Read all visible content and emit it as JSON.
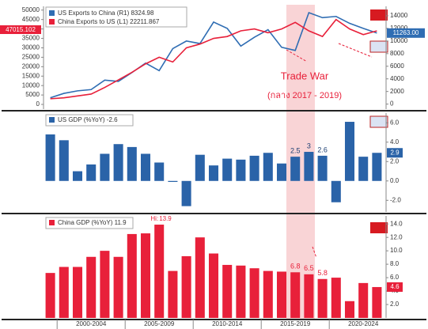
{
  "chart_data": [
    {
      "type": "line",
      "series": [
        {
          "name": "US Exports to China (R1) 8324.98",
          "color": "#2f6db3",
          "axis": "y2",
          "values": [
            1000,
            1700,
            2100,
            2300,
            3800,
            3600,
            5000,
            6500,
            5300,
            8800,
            10000,
            9600,
            13000,
            12000,
            9200,
            10600,
            11800,
            9000,
            8500,
            14500,
            13700,
            13900,
            12800,
            12000,
            11263
          ]
        },
        {
          "name": "China Exports to US (L1) 22211.867",
          "color": "#e8203a",
          "values": [
            3000,
            3500,
            4500,
            5500,
            9000,
            13000,
            17000,
            21500,
            25000,
            22500,
            30000,
            32000,
            35000,
            36000,
            39000,
            40000,
            38000,
            40000,
            43500,
            39000,
            36000,
            45000,
            40000,
            37000,
            39000
          ]
        }
      ],
      "ylim": [
        -2500,
        52000
      ],
      "yticks": [
        0,
        5000,
        10000,
        15000,
        20000,
        25000,
        30000,
        35000,
        40000,
        45000,
        50000
      ],
      "y2lim": [
        -800,
        15500
      ],
      "y2ticks": [
        0,
        2000,
        4000,
        6000,
        8000,
        10000,
        12000,
        14000
      ],
      "left_tag": "47015.102",
      "right_tag": "11263.00",
      "annotation": "Trade War",
      "annotation_sub": "(กลาง 2017 - 2019)"
    },
    {
      "type": "bar",
      "name": "US GDP (%YoY) -2.6",
      "color": "#2a63a8",
      "values": [
        4.8,
        4.2,
        1.0,
        1.7,
        2.8,
        3.8,
        3.5,
        2.8,
        1.9,
        -0.1,
        -2.6,
        2.7,
        1.6,
        2.3,
        2.2,
        2.6,
        2.9,
        1.8,
        2.5,
        3.0,
        2.6,
        -2.2,
        6.1,
        2.5,
        2.9
      ],
      "labeled_bars": [
        18,
        19,
        20
      ],
      "ylim": [
        -3.2,
        7.0
      ],
      "yticks": [
        {
          "value": -2,
          "label": "-2.0"
        },
        {
          "value": 0,
          "label": "0.0"
        },
        {
          "value": 2,
          "label": "2.0"
        },
        {
          "value": 4,
          "label": "4.0"
        },
        {
          "value": 6,
          "label": "6.0"
        }
      ],
      "right_tag": "2.9"
    },
    {
      "type": "bar",
      "name": "China GDP (%YoY) 11.9",
      "color": "#e8203a",
      "values": [
        6.7,
        7.6,
        7.6,
        9.1,
        10.0,
        9.1,
        12.5,
        12.6,
        13.9,
        7.0,
        9.2,
        12.0,
        9.6,
        7.9,
        7.8,
        7.4,
        7.0,
        6.9,
        6.8,
        6.5,
        5.8,
        6.0,
        2.5,
        5.2,
        4.6
      ],
      "labeled_bars": [
        18,
        19,
        20
      ],
      "high_prefix": "Hi:",
      "high_index": 8,
      "ylim": [
        0,
        15.2
      ],
      "yticks": [
        {
          "value": 2,
          "label": "2.0"
        },
        {
          "value": 4,
          "label": "4.0"
        },
        {
          "value": 6,
          "label": "6.0"
        },
        {
          "value": 8,
          "label": "8.0"
        },
        {
          "value": 10,
          "label": "10.0"
        },
        {
          "value": 12,
          "label": "12.0"
        },
        {
          "value": 14,
          "label": "14.0"
        }
      ],
      "right_tag": "4.6",
      "x_labels": [
        "2000-2004",
        "2005-2009",
        "2010-2014",
        "2015-2019",
        "2020-2024"
      ]
    }
  ]
}
